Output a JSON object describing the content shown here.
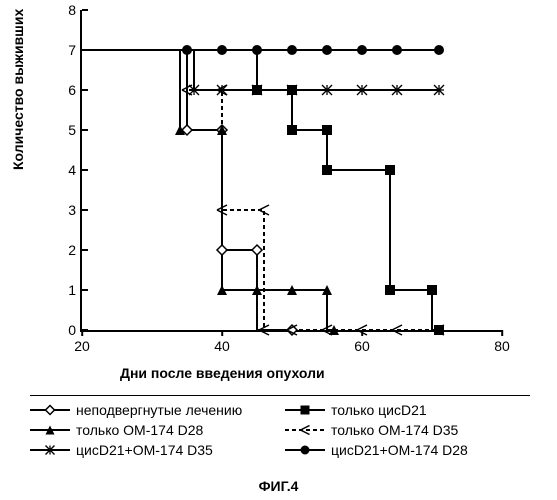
{
  "chart": {
    "type": "line-step",
    "ylabel": "Количество выживших",
    "xlabel": "Дни после введения опухоли",
    "caption": "ФИГ.4",
    "xlim": [
      20,
      80
    ],
    "ylim": [
      0,
      8
    ],
    "xticks": [
      20,
      40,
      60,
      80
    ],
    "yticks": [
      0,
      1,
      2,
      3,
      4,
      5,
      6,
      7,
      8
    ],
    "background_color": "#ffffff",
    "axis_color": "#000000",
    "line_width": 2,
    "marker_size": 5,
    "series": [
      {
        "id": "untreated",
        "label": "неподвергнутые лечению",
        "color": "#000000",
        "marker": "diamond-open",
        "points": [
          [
            20,
            7
          ],
          [
            35,
            7
          ],
          [
            35,
            5
          ],
          [
            40,
            5
          ],
          [
            40,
            2
          ],
          [
            45,
            2
          ],
          [
            45,
            0
          ],
          [
            50,
            0
          ]
        ],
        "marker_at": [
          [
            35,
            5
          ],
          [
            40,
            5
          ],
          [
            40,
            2
          ],
          [
            45,
            2
          ],
          [
            50,
            0
          ]
        ]
      },
      {
        "id": "cisD21",
        "label": "только цисD21",
        "color": "#000000",
        "marker": "square-filled",
        "points": [
          [
            20,
            7
          ],
          [
            45,
            7
          ],
          [
            45,
            6
          ],
          [
            50,
            6
          ],
          [
            50,
            5
          ],
          [
            55,
            5
          ],
          [
            55,
            4
          ],
          [
            64,
            4
          ],
          [
            64,
            1
          ],
          [
            70,
            1
          ],
          [
            70,
            0
          ],
          [
            71,
            0
          ]
        ],
        "marker_at": [
          [
            45,
            6
          ],
          [
            50,
            6
          ],
          [
            50,
            5
          ],
          [
            55,
            5
          ],
          [
            55,
            4
          ],
          [
            64,
            4
          ],
          [
            64,
            1
          ],
          [
            70,
            1
          ],
          [
            71,
            0
          ]
        ]
      },
      {
        "id": "om174d28",
        "label": "только  OM-174 D28",
        "label_split": [
          "только",
          "OM-174 D28"
        ],
        "color": "#000000",
        "marker": "triangle-filled",
        "points": [
          [
            20,
            7
          ],
          [
            34,
            7
          ],
          [
            34,
            5
          ],
          [
            40,
            5
          ],
          [
            40,
            1
          ],
          [
            55,
            1
          ],
          [
            55,
            0
          ],
          [
            56,
            0
          ]
        ],
        "marker_at": [
          [
            34,
            5
          ],
          [
            40,
            5
          ],
          [
            40,
            1
          ],
          [
            45,
            1
          ],
          [
            50,
            1
          ],
          [
            55,
            1
          ],
          [
            56,
            0
          ]
        ]
      },
      {
        "id": "om174d35",
        "label": "только  OM-174 D35",
        "label_split": [
          "только",
          "OM-174 D35"
        ],
        "color": "#000000",
        "marker": "angle-open",
        "dash": "4 3",
        "points": [
          [
            20,
            7
          ],
          [
            35,
            7
          ],
          [
            35,
            6
          ],
          [
            40,
            6
          ],
          [
            40,
            3
          ],
          [
            46,
            3
          ],
          [
            46,
            0
          ],
          [
            71,
            0
          ]
        ],
        "marker_at": [
          [
            35,
            6
          ],
          [
            40,
            6
          ],
          [
            40,
            3
          ],
          [
            46,
            3
          ],
          [
            46,
            0
          ],
          [
            50,
            0
          ],
          [
            55,
            0
          ],
          [
            60,
            0
          ],
          [
            65,
            0
          ],
          [
            71,
            0
          ]
        ]
      },
      {
        "id": "cis_om_d35",
        "label": "цисD21+OM-174 D35",
        "color": "#000000",
        "marker": "asterisk",
        "points": [
          [
            20,
            7
          ],
          [
            36,
            7
          ],
          [
            36,
            6
          ],
          [
            71,
            6
          ]
        ],
        "marker_at": [
          [
            36,
            6
          ],
          [
            40,
            6
          ],
          [
            45,
            6
          ],
          [
            50,
            6
          ],
          [
            55,
            6
          ],
          [
            60,
            6
          ],
          [
            65,
            6
          ],
          [
            71,
            6
          ]
        ]
      },
      {
        "id": "cis_om_d28",
        "label": "цисD21+OM-174 D28",
        "color": "#000000",
        "marker": "circle-filled",
        "points": [
          [
            20,
            7
          ],
          [
            71,
            7
          ]
        ],
        "marker_at": [
          [
            35,
            7
          ],
          [
            40,
            7
          ],
          [
            45,
            7
          ],
          [
            50,
            7
          ],
          [
            55,
            7
          ],
          [
            60,
            7
          ],
          [
            65,
            7
          ],
          [
            71,
            7
          ]
        ]
      }
    ],
    "legend_order": [
      "untreated",
      "cisD21",
      "om174d28",
      "om174d35",
      "cis_om_d35",
      "cis_om_d28"
    ]
  }
}
